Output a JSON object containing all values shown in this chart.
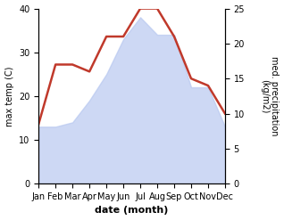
{
  "months": [
    "Jan",
    "Feb",
    "Mar",
    "Apr",
    "May",
    "Jun",
    "Jul",
    "Aug",
    "Sep",
    "Oct",
    "Nov",
    "Dec"
  ],
  "temperature": [
    13,
    13,
    14,
    19,
    25,
    33,
    38,
    34,
    34,
    22,
    22,
    13
  ],
  "precipitation": [
    8.5,
    17,
    17,
    16,
    21,
    21,
    25,
    25,
    21,
    15,
    14,
    10
  ],
  "temp_fill_color": "#b8c8f0",
  "temp_line_color": "#c0392b",
  "temp_fill_alpha": 0.7,
  "temp_ylim": [
    0,
    40
  ],
  "precip_ylim": [
    0,
    25
  ],
  "temp_yticks": [
    0,
    10,
    20,
    30,
    40
  ],
  "precip_yticks": [
    0,
    5,
    10,
    15,
    20,
    25
  ],
  "xlabel": "date (month)",
  "ylabel_left": "max temp (C)",
  "ylabel_right": "med. precipitation\n(kg/m2)",
  "line_width": 1.8,
  "xlabel_fontsize": 8,
  "ylabel_fontsize": 7,
  "tick_fontsize": 7
}
